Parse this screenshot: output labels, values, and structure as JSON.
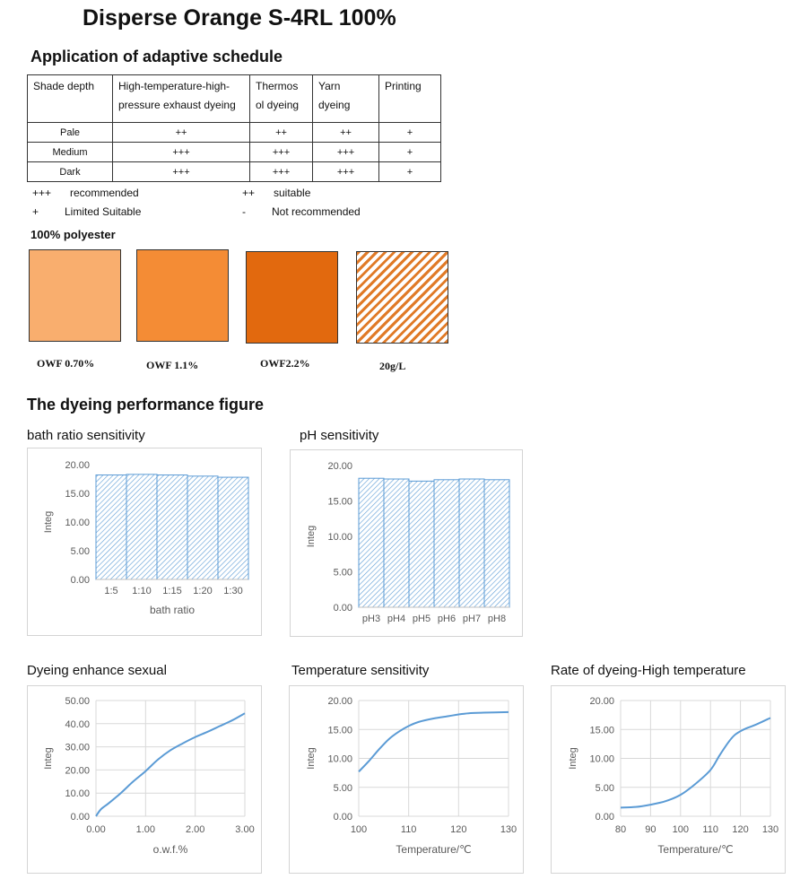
{
  "title": "Disperse Orange S-4RL 100%",
  "schedule": {
    "heading": "Application of adaptive schedule",
    "columns": [
      "Shade depth",
      "High-temperature-high-pressure exhaust dyeing",
      "Thermosol dyeing",
      "Yarn dyeing",
      "Printing"
    ],
    "column_lines": [
      [
        "Shade depth"
      ],
      [
        "High-temperature-high-",
        "pressure exhaust dyeing"
      ],
      [
        "Thermos",
        "ol dyeing"
      ],
      [
        "Yarn",
        "dyeing"
      ],
      [
        "Printing"
      ]
    ],
    "rows": [
      [
        "Pale",
        "++",
        "++",
        "++",
        "+"
      ],
      [
        "Medium",
        "+++",
        "+++",
        "+++",
        "+"
      ],
      [
        "Dark",
        "+++",
        "+++",
        "+++",
        "+"
      ]
    ],
    "legend": [
      {
        "symbol": "+++",
        "meaning": "recommended"
      },
      {
        "symbol": "++",
        "meaning": "suitable"
      },
      {
        "symbol": "+",
        "meaning": "Limited Suitable"
      },
      {
        "symbol": "-",
        "meaning": "Not recommended"
      }
    ]
  },
  "swatches": {
    "heading": "100% polyester",
    "items": [
      {
        "label": "OWF 0.70%",
        "color": "#F9AE6E",
        "pattern": "solid"
      },
      {
        "label": "OWF 1.1%",
        "color": "#F48C35",
        "pattern": "solid"
      },
      {
        "label": "OWF2.2%",
        "color": "#E2690E",
        "pattern": "solid"
      },
      {
        "label": "20g/L",
        "color": "#E07A27",
        "pattern": "hatched"
      }
    ]
  },
  "performance_heading": "The dyeing performance figure",
  "colors": {
    "series": "#5B9BD5",
    "grid": "#d9d9d9",
    "axis_text": "#595959"
  },
  "chart_data": [
    {
      "id": "bath",
      "type": "bar",
      "title": "bath ratio sensitivity",
      "xlabel": "bath ratio",
      "ylabel": "Integ",
      "categories": [
        "1:5",
        "1:10",
        "1:15",
        "1:20",
        "1:30"
      ],
      "values": [
        18.2,
        18.3,
        18.2,
        18.0,
        17.8
      ],
      "ylim": [
        0,
        20
      ],
      "yticks": [
        "0.00",
        "5.00",
        "10.00",
        "15.00",
        "20.00"
      ],
      "grid": false
    },
    {
      "id": "ph",
      "type": "bar",
      "title": "pH sensitivity",
      "xlabel": "",
      "ylabel": "Integ",
      "categories": [
        "pH3",
        "pH4",
        "pH5",
        "pH6",
        "pH7",
        "pH8"
      ],
      "values": [
        18.2,
        18.1,
        17.8,
        18.0,
        18.1,
        18.0
      ],
      "ylim": [
        0,
        20
      ],
      "yticks": [
        "0.00",
        "5.00",
        "10.00",
        "15.00",
        "20.00"
      ],
      "grid": false
    },
    {
      "id": "enhance",
      "type": "line",
      "title": "Dyeing enhance sexual",
      "xlabel": "o.w.f.%",
      "ylabel": "Integ",
      "x": [
        0,
        0.1,
        0.25,
        0.5,
        0.75,
        1.0,
        1.25,
        1.5,
        1.75,
        2.0,
        2.25,
        2.5,
        2.75,
        3.0
      ],
      "y": [
        0,
        3,
        5.5,
        10,
        15,
        19.5,
        24.5,
        28.5,
        31.5,
        34.2,
        36.5,
        39,
        41.5,
        44.5
      ],
      "xlim": [
        0,
        3
      ],
      "ylim": [
        0,
        50
      ],
      "xticks": [
        "0.00",
        "1.00",
        "2.00",
        "3.00"
      ],
      "yticks": [
        "0.00",
        "10.00",
        "20.00",
        "30.00",
        "40.00",
        "50.00"
      ],
      "grid": true
    },
    {
      "id": "temp",
      "type": "line",
      "title": "Temperature sensitivity",
      "xlabel": "Temperature/℃",
      "ylabel": "Integ",
      "x": [
        100,
        102,
        104,
        106,
        108,
        110,
        112,
        115,
        118,
        120,
        122,
        125,
        130
      ],
      "y": [
        7.7,
        9.5,
        11.5,
        13.3,
        14.6,
        15.6,
        16.3,
        16.9,
        17.3,
        17.6,
        17.8,
        17.9,
        18.0
      ],
      "xlim": [
        100,
        130
      ],
      "ylim": [
        0,
        20
      ],
      "xticks": [
        "100",
        "110",
        "120",
        "130"
      ],
      "yticks": [
        "0.00",
        "5.00",
        "10.00",
        "15.00",
        "20.00"
      ],
      "grid": true
    },
    {
      "id": "rate",
      "type": "line",
      "title": "Rate of dyeing-High temperature",
      "xlabel": "Temperature/℃",
      "ylabel": "Integ",
      "x": [
        80,
        85,
        90,
        95,
        100,
        105,
        110,
        113,
        116,
        118,
        120,
        122,
        125,
        130
      ],
      "y": [
        1.5,
        1.6,
        2.0,
        2.6,
        3.7,
        5.6,
        8.0,
        10.5,
        12.8,
        14.0,
        14.7,
        15.2,
        15.8,
        17.0
      ],
      "xlim": [
        80,
        130
      ],
      "ylim": [
        0,
        20
      ],
      "xticks": [
        "80",
        "90",
        "100",
        "110",
        "120",
        "130"
      ],
      "yticks": [
        "0.00",
        "5.00",
        "10.00",
        "15.00",
        "20.00"
      ],
      "grid": true
    }
  ]
}
